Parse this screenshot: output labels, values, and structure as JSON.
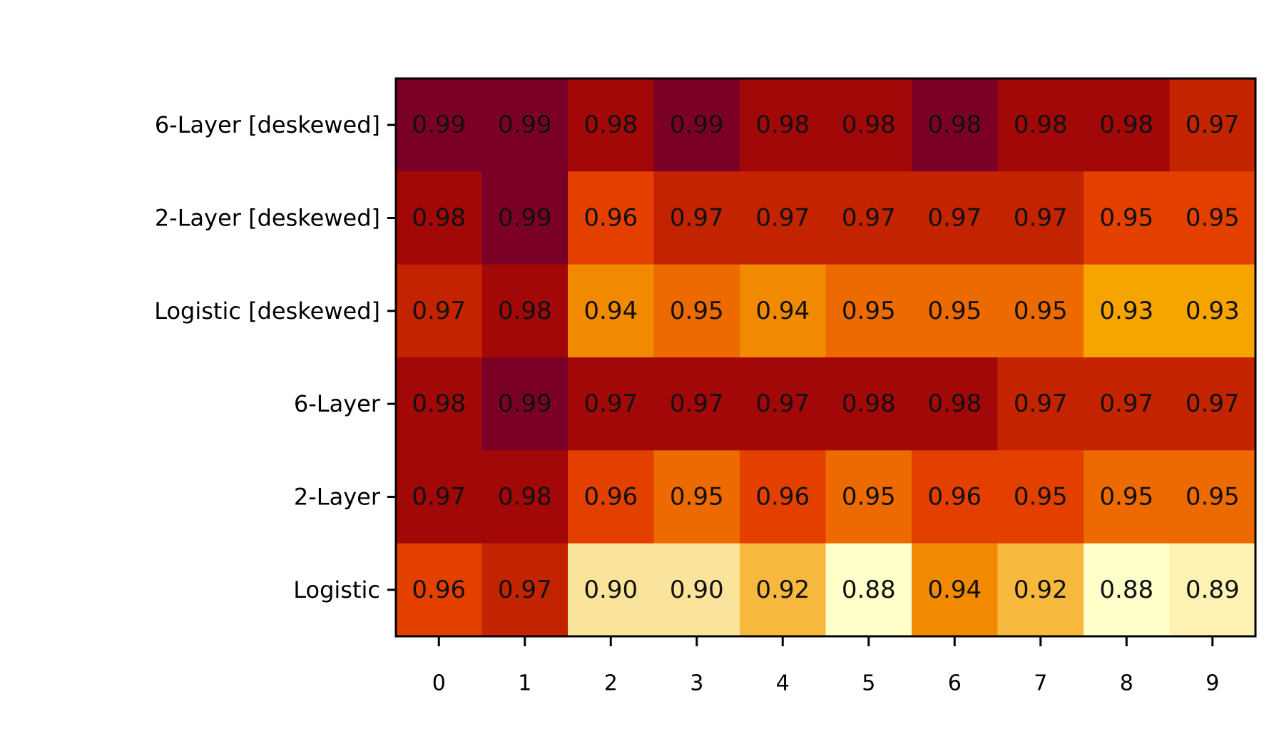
{
  "chart_data": {
    "type": "heatmap",
    "title": "",
    "xlabel": "",
    "ylabel": "",
    "x_categories": [
      "0",
      "1",
      "2",
      "3",
      "4",
      "5",
      "6",
      "7",
      "8",
      "9"
    ],
    "y_categories": [
      "6-Layer [deskewed]",
      "2-Layer [deskewed]",
      "Logistic [deskewed]",
      "6-Layer",
      "2-Layer",
      "Logistic"
    ],
    "values": [
      [
        0.99,
        0.99,
        0.98,
        0.99,
        0.98,
        0.98,
        0.98,
        0.98,
        0.98,
        0.97
      ],
      [
        0.98,
        0.99,
        0.96,
        0.97,
        0.97,
        0.97,
        0.97,
        0.97,
        0.95,
        0.95
      ],
      [
        0.97,
        0.98,
        0.94,
        0.95,
        0.94,
        0.95,
        0.95,
        0.95,
        0.93,
        0.93
      ],
      [
        0.98,
        0.99,
        0.97,
        0.97,
        0.97,
        0.98,
        0.98,
        0.97,
        0.97,
        0.97
      ],
      [
        0.97,
        0.98,
        0.96,
        0.95,
        0.96,
        0.95,
        0.96,
        0.95,
        0.95,
        0.95
      ],
      [
        0.96,
        0.97,
        0.9,
        0.9,
        0.92,
        0.88,
        0.94,
        0.92,
        0.88,
        0.89
      ]
    ],
    "labels": [
      [
        "0.99",
        "0.99",
        "0.98",
        "0.99",
        "0.98",
        "0.98",
        "0.98",
        "0.98",
        "0.98",
        "0.97"
      ],
      [
        "0.98",
        "0.99",
        "0.96",
        "0.97",
        "0.97",
        "0.97",
        "0.97",
        "0.97",
        "0.95",
        "0.95"
      ],
      [
        "0.97",
        "0.98",
        "0.94",
        "0.95",
        "0.94",
        "0.95",
        "0.95",
        "0.95",
        "0.93",
        "0.93"
      ],
      [
        "0.98",
        "0.99",
        "0.97",
        "0.97",
        "0.97",
        "0.98",
        "0.98",
        "0.97",
        "0.97",
        "0.97"
      ],
      [
        "0.97",
        "0.98",
        "0.96",
        "0.95",
        "0.96",
        "0.95",
        "0.96",
        "0.95",
        "0.95",
        "0.95"
      ],
      [
        "0.96",
        "0.97",
        "0.90",
        "0.90",
        "0.92",
        "0.88",
        "0.94",
        "0.92",
        "0.88",
        "0.89"
      ]
    ],
    "colors": [
      [
        "#7a0026",
        "#7a0026",
        "#a20808",
        "#7a0026",
        "#a20808",
        "#a20808",
        "#7a0026",
        "#a20808",
        "#a20808",
        "#c42300"
      ],
      [
        "#a20808",
        "#7a0026",
        "#e34000",
        "#c42300",
        "#c42300",
        "#c42300",
        "#c42300",
        "#c42300",
        "#e34000",
        "#e34000"
      ],
      [
        "#c42300",
        "#a20808",
        "#f28a00",
        "#ec6a00",
        "#f28a00",
        "#ec6a00",
        "#ec6a00",
        "#ec6a00",
        "#f6a400",
        "#f6a400"
      ],
      [
        "#a20808",
        "#7a0026",
        "#a20808",
        "#a20808",
        "#a20808",
        "#a20808",
        "#a20808",
        "#c42300",
        "#c42300",
        "#c42300"
      ],
      [
        "#a20808",
        "#a20808",
        "#e34000",
        "#ec6a00",
        "#e34000",
        "#ec6a00",
        "#e34000",
        "#e34000",
        "#ec6a00",
        "#ec6a00"
      ],
      [
        "#e34000",
        "#c42300",
        "#fae39b",
        "#fae39b",
        "#f6b83d",
        "#ffffca",
        "#f28a00",
        "#f6b83d",
        "#ffffca",
        "#fdf2b4"
      ]
    ],
    "colormap": "YlOrRd",
    "grid": false,
    "colorbar": false
  }
}
